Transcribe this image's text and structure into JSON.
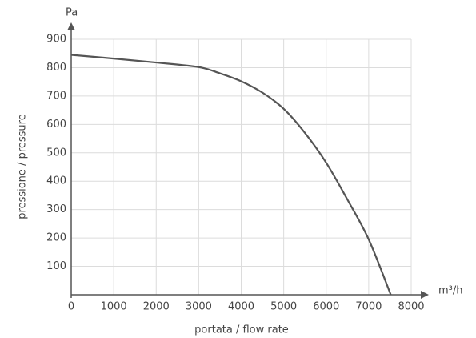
{
  "chart_data": {
    "type": "line",
    "y_unit": "Pa",
    "x_unit": "m³/h",
    "ylabel": "pressione / pressure",
    "xlabel": "portata / flow rate",
    "x": [
      0,
      1000,
      2000,
      3000,
      3500,
      4000,
      4500,
      5000,
      5500,
      6000,
      6500,
      7000,
      7520
    ],
    "series": [
      {
        "color": "#555555",
        "values": [
          845,
          832,
          818,
          802,
          780,
          752,
          712,
          655,
          570,
          465,
          335,
          195,
          0
        ]
      }
    ],
    "xlim": [
      0,
      8000
    ],
    "xticks": [
      0,
      1000,
      2000,
      3000,
      4000,
      5000,
      6000,
      7000,
      8000
    ],
    "ylim": [
      0,
      900
    ],
    "yticks": [
      100,
      200,
      300,
      400,
      500,
      600,
      700,
      800,
      900
    ],
    "grid": true
  }
}
